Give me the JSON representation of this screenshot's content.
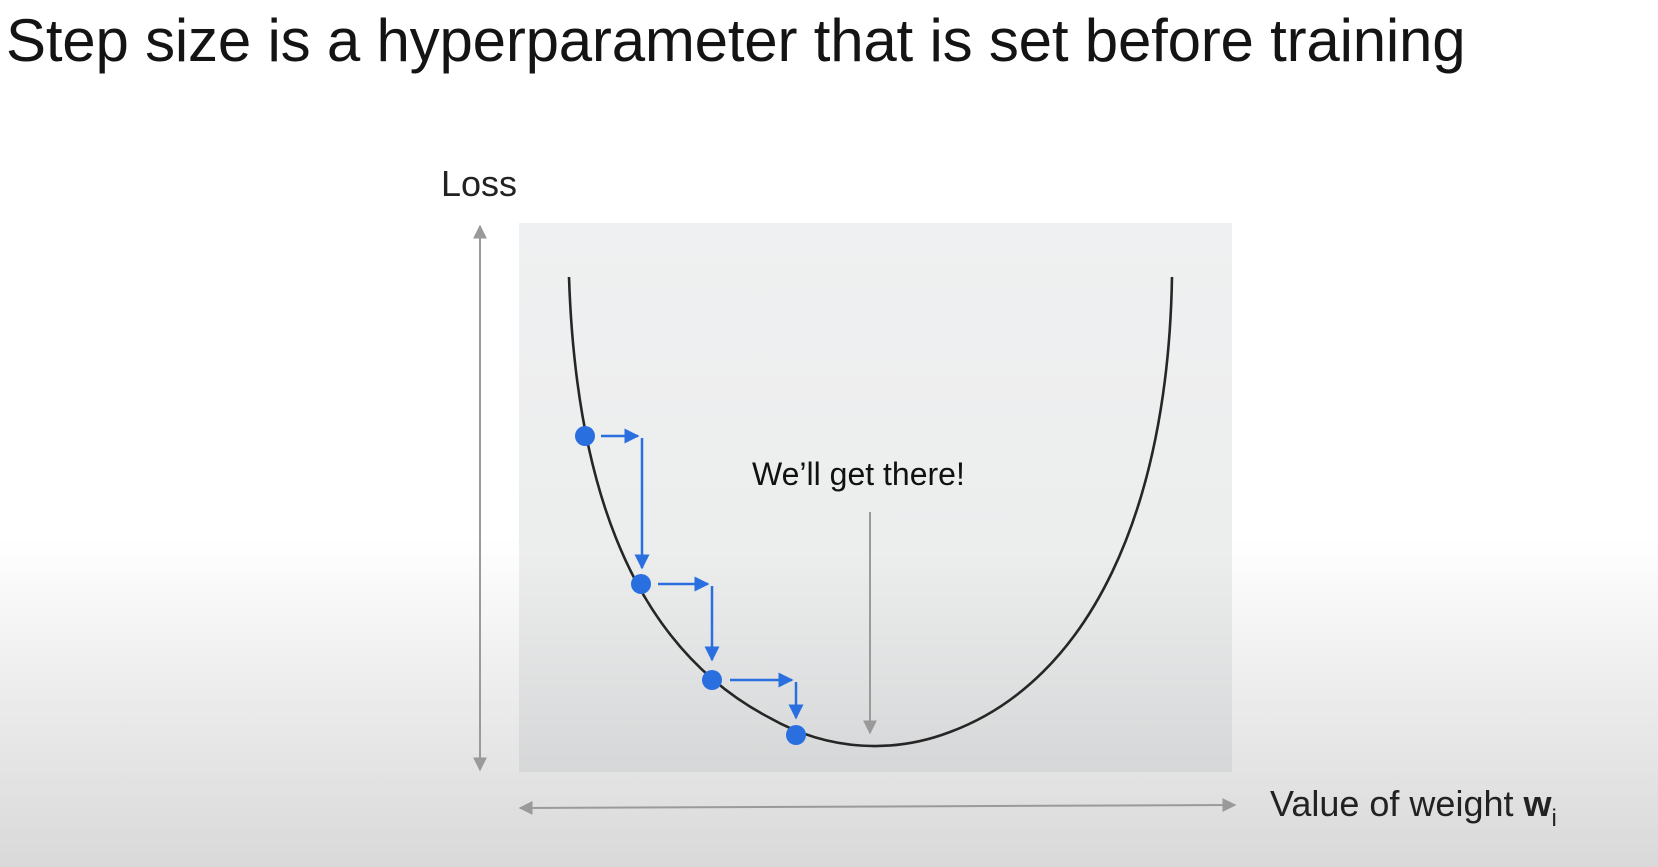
{
  "title": "Step size is a hyperparameter that is set before training",
  "diagram": {
    "y_axis_label": "Loss",
    "x_axis_label": "Value of weight",
    "x_axis_symbol": "w",
    "x_axis_subscript": "i",
    "annotation": "We’ll get there!",
    "colors": {
      "panel": "#eff0f1",
      "curve": "#262626",
      "step_marker": "#2a6fe0",
      "axis_arrow": "#9a9a9a"
    },
    "step_count": 4
  }
}
